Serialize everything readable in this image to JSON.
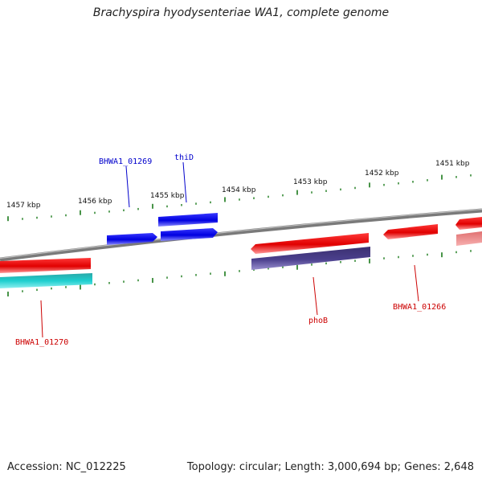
{
  "title": "Brachyspira hyodysenteriae WA1, complete genome",
  "footer": {
    "accession": "Accession: NC_012225",
    "summary": "Topology: circular; Length: 3,000,694 bp; Genes: 2,648"
  },
  "ruler_labels": [
    "1457 kbp",
    "1456 kbp",
    "1455 kbp",
    "1454 kbp",
    "1453 kbp",
    "1452 kbp",
    "1451 kbp"
  ],
  "gene_labels": {
    "bhwa1_01269": "BHWA1_01269",
    "thid": "thiD",
    "bhwa1_01270": "BHWA1_01270",
    "phob": "phoB",
    "bhwa1_01266": "BHWA1_01266"
  },
  "colors": {
    "forward_gene": "#0000ee",
    "reverse_gene": "#ff0000",
    "cds_teal": "#1ecfcf",
    "cds_purple": "#4a3f8c",
    "faded_red": "#f08080",
    "backbone": "#8a8a8a",
    "tick": "#1a7a1a",
    "label_blue": "#0000cc",
    "label_red": "#cc0000"
  }
}
